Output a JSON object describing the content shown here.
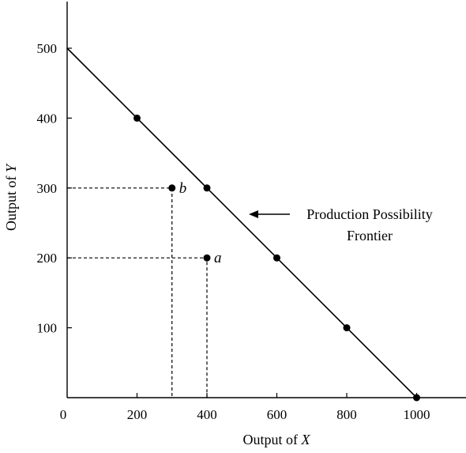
{
  "chart_data": {
    "type": "line",
    "xlabel_prefix": "Output of ",
    "xlabel_var": "X",
    "ylabel_prefix": "Output of ",
    "ylabel_var": "Y",
    "xlim": [
      0,
      1140
    ],
    "ylim": [
      0,
      560
    ],
    "x_ticks": [
      200,
      400,
      600,
      800,
      1000
    ],
    "y_ticks": [
      100,
      200,
      300,
      400,
      500
    ],
    "origin_label": "0",
    "grid": false,
    "ppf": {
      "x": [
        0,
        200,
        400,
        600,
        800,
        1000
      ],
      "y": [
        500,
        400,
        300,
        200,
        100,
        0
      ],
      "marked_points": [
        {
          "x": 200,
          "y": 400
        },
        {
          "x": 400,
          "y": 300
        },
        {
          "x": 600,
          "y": 200
        },
        {
          "x": 800,
          "y": 100
        },
        {
          "x": 1000,
          "y": 0
        }
      ]
    },
    "extra_points": [
      {
        "label": "b",
        "x": 300,
        "y": 300
      },
      {
        "label": "a",
        "x": 400,
        "y": 200
      }
    ],
    "annotation": {
      "line1": "Production Possibility",
      "line2": "Frontier",
      "arrow_target": {
        "x": 520,
        "y": 260
      }
    }
  }
}
